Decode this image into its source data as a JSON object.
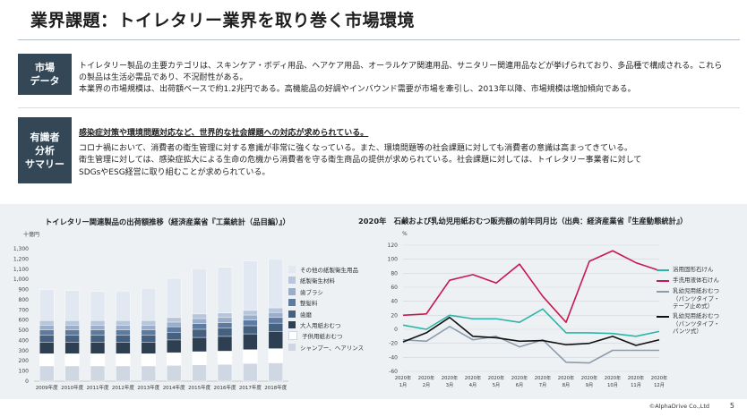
{
  "title": "業界課題：トイレタリー業界を取り巻く市場環境",
  "market_section": {
    "label_lines": [
      "市場",
      "データ"
    ],
    "paragraphs": [
      "トイレタリー製品の主要カテゴリは、スキンケア・ボディ用品、ヘアケア用品、オーラルケア関連用品、サニタリー関連用品などが挙げられており、多品種で構成される。これらの製品は生活必需品であり、不況耐性がある。",
      "本業界の市場規模は、出荷額ベースで約1.2兆円である。高機能品の好調やインバウンド需要が市場を牽引し、2013年以降、市場規模は増加傾向である。"
    ]
  },
  "expert_section": {
    "label_lines": [
      "有識者",
      "分析",
      "サマリー"
    ],
    "headline": "感染症対策や環境問題対応など、世界的な社会課題への対応が求められている。",
    "paragraphs": [
      "コロナ禍において、消費者の衛生管理に対する意識が非常に強くなっている。また、環境問題等の社会課題に対しても消費者の意識は高まってきている。",
      "衛生管理に対しては、感染症拡大による生命の危機から消費者を守る衛生商品の提供が求められている。社会課題に対しては、トイレタリー事業者に対して",
      "SDGsやESG経営に取り組むことが求められている。"
    ]
  },
  "footer": {
    "copyright": "©AlphaDrive Co.,Ltd",
    "page_number": "5"
  },
  "chart_data": [
    {
      "type": "bar",
      "stacked": true,
      "title": "トイレタリー関連製品の出荷額推移（経済産業省『工業統計（品目編）』）",
      "unit": "十億円",
      "categories": [
        "2009年度",
        "2010年度",
        "2011年度",
        "2012年度",
        "2013年度",
        "2014年度",
        "2015年度",
        "2016年度",
        "2017年度",
        "2018年度"
      ],
      "ylim": [
        0,
        1300
      ],
      "yticks": [
        0,
        100,
        200,
        300,
        400,
        500,
        600,
        700,
        800,
        900,
        1000,
        1100,
        1200,
        1300
      ],
      "grid": false,
      "legend_position": "right",
      "series": [
        {
          "name": "シャンプー、ヘアリンス",
          "color": "#cfd7e3",
          "values": [
            150,
            150,
            150,
            150,
            150,
            155,
            160,
            165,
            175,
            180
          ]
        },
        {
          "name": "子供用紙おむつ",
          "color": "#ffffff",
          "values": [
            120,
            120,
            120,
            120,
            120,
            125,
            130,
            130,
            135,
            140
          ]
        },
        {
          "name": "大人用紙おむつ",
          "color": "#2f3f52",
          "values": [
            110,
            110,
            110,
            110,
            110,
            125,
            140,
            145,
            155,
            165
          ]
        },
        {
          "name": "歯磨",
          "color": "#46607f",
          "values": [
            70,
            70,
            70,
            70,
            70,
            75,
            80,
            80,
            80,
            85
          ]
        },
        {
          "name": "整髪料",
          "color": "#5d7aa0",
          "values": [
            55,
            55,
            55,
            55,
            55,
            55,
            55,
            55,
            55,
            55
          ]
        },
        {
          "name": "歯ブラシ",
          "color": "#9aaecb",
          "values": [
            45,
            45,
            45,
            45,
            45,
            45,
            50,
            50,
            50,
            50
          ]
        },
        {
          "name": "紙製衛生材料",
          "color": "#b8c6dc",
          "values": [
            45,
            45,
            45,
            45,
            45,
            45,
            45,
            45,
            45,
            45
          ]
        },
        {
          "name": "その他の紙製衛生用品",
          "color": "#e2e8f1",
          "values": [
            305,
            295,
            285,
            290,
            315,
            385,
            445,
            450,
            485,
            480
          ]
        }
      ]
    },
    {
      "type": "line",
      "title": "2020年　石鹸および乳幼児用紙おむつ販売額の前年同月比（出典：経済産業省『生産動態統計』）",
      "unit": "%",
      "categories": [
        "2020年\n1月",
        "2020年\n2月",
        "2020年\n3月",
        "2020年\n4月",
        "2020年\n5月",
        "2020年\n6月",
        "2020年\n7月",
        "2020年\n8月",
        "2020年\n9月",
        "2020年\n10月",
        "2020年\n11月",
        "2020年\n12月"
      ],
      "ylim": [
        -60,
        120
      ],
      "yticks": [
        -60,
        -40,
        -20,
        0,
        20,
        40,
        60,
        80,
        100,
        120
      ],
      "grid": true,
      "legend_position": "right",
      "series": [
        {
          "name": "浴用固形石けん",
          "color": "#2bb5a8",
          "values": [
            6,
            0,
            20,
            15,
            15,
            10,
            29,
            -5,
            -5,
            -6,
            -10,
            -3
          ]
        },
        {
          "name": "手洗用液体石けん",
          "color": "#c8174f",
          "values": [
            20,
            22,
            70,
            78,
            66,
            93,
            47,
            10,
            97,
            112,
            95,
            84
          ]
        },
        {
          "name": "乳幼児用紙おむつ（パンツタイプ・テープ止め式）",
          "color": "#8a9cad",
          "values": [
            -15,
            -17,
            4,
            -15,
            -10,
            -25,
            -15,
            -47,
            -48,
            -30,
            -30,
            -30
          ]
        },
        {
          "name": "乳幼児用紙おむつ（パンツタイプ・パンツ式）",
          "color": "#111111",
          "values": [
            -18,
            -5,
            17,
            -10,
            -12,
            -17,
            -16,
            -22,
            -20,
            -10,
            -23,
            -15
          ]
        }
      ]
    }
  ]
}
